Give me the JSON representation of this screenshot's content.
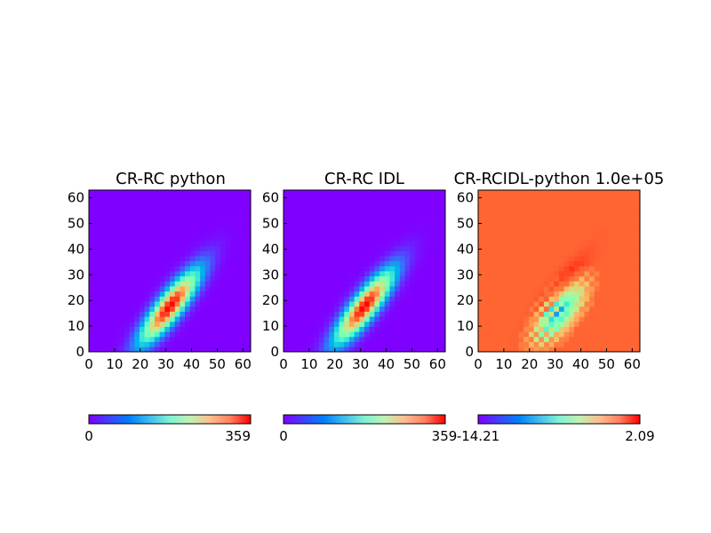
{
  "chart_data": [
    {
      "type": "heatmap",
      "title": "CR-RC python",
      "xlim": [
        0,
        63
      ],
      "ylim": [
        0,
        63
      ],
      "xticks": [
        "0",
        "10",
        "20",
        "30",
        "40",
        "50",
        "60"
      ],
      "yticks": [
        "0",
        "10",
        "20",
        "30",
        "40",
        "50",
        "60"
      ],
      "colormap": "rainbow",
      "colorbar": {
        "ticks": [
          "0",
          "359"
        ],
        "range": [
          0,
          359
        ]
      },
      "blob": {
        "center": [
          32,
          18
        ],
        "peak": 359,
        "spread_major": 12,
        "spread_minor": 3.2,
        "angle_deg": 52
      }
    },
    {
      "type": "heatmap",
      "title": "CR-RC IDL",
      "xlim": [
        0,
        63
      ],
      "ylim": [
        0,
        63
      ],
      "xticks": [
        "0",
        "10",
        "20",
        "30",
        "40",
        "50",
        "60"
      ],
      "yticks": [
        "0",
        "10",
        "20",
        "30",
        "40",
        "50",
        "60"
      ],
      "colormap": "rainbow",
      "colorbar": {
        "ticks": [
          "0",
          "359"
        ],
        "range": [
          0,
          359
        ]
      },
      "blob": {
        "center": [
          32,
          18
        ],
        "peak": 359,
        "spread_major": 12,
        "spread_minor": 3.2,
        "angle_deg": 52
      }
    },
    {
      "type": "heatmap",
      "title": "CR-RCIDL-python 1.0e+05",
      "xlim": [
        0,
        63
      ],
      "ylim": [
        0,
        63
      ],
      "xticks": [
        "0",
        "10",
        "20",
        "30",
        "40",
        "50",
        "60"
      ],
      "yticks": [
        "0",
        "10",
        "20",
        "30",
        "40",
        "50",
        "60"
      ],
      "colormap": "rainbow",
      "colorbar": {
        "ticks": [
          "-14.21",
          "2.09"
        ],
        "range": [
          -14.21,
          2.09
        ]
      },
      "background_value": 0
    }
  ]
}
